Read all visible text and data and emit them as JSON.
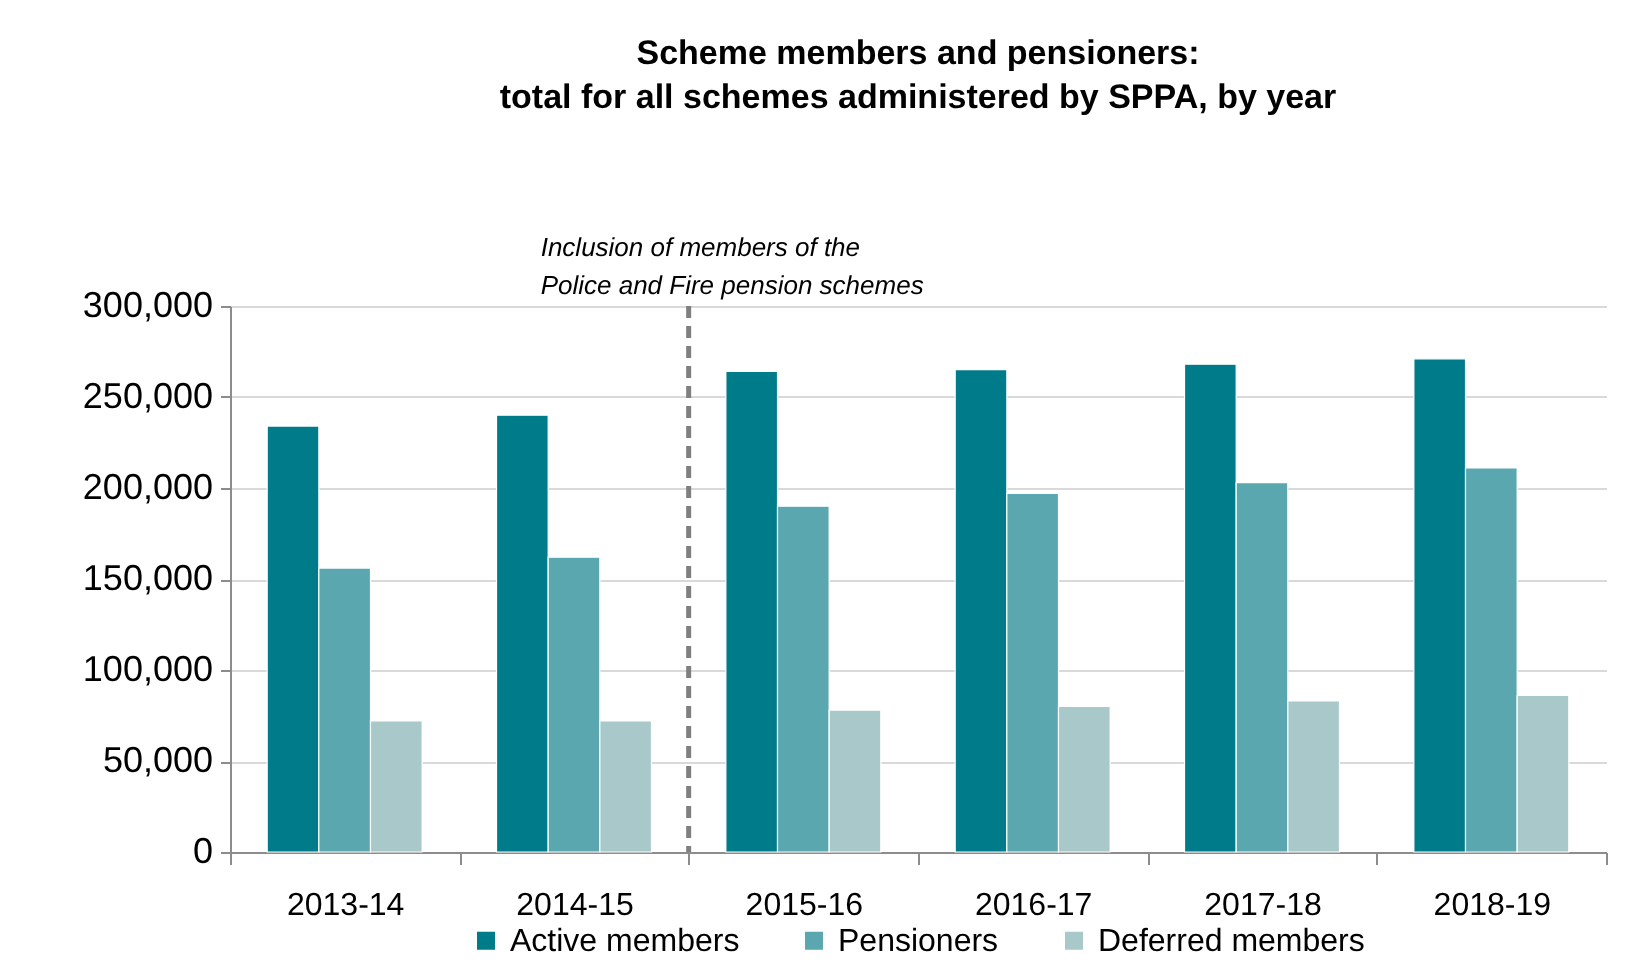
{
  "chart_data": {
    "type": "bar",
    "title": "Scheme members and pensioners:\ntotal for all schemes administered by SPPA, by year",
    "categories": [
      "2013-14",
      "2014-15",
      "2015-16",
      "2016-17",
      "2017-18",
      "2018-19"
    ],
    "series": [
      {
        "name": "Active members",
        "color": "#007b8a",
        "values": [
          234000,
          240000,
          264000,
          265000,
          268000,
          271000
        ]
      },
      {
        "name": "Pensioners",
        "color": "#5aa7b0",
        "values": [
          156000,
          162000,
          190000,
          197000,
          203000,
          211000
        ]
      },
      {
        "name": "Deferred members",
        "color": "#a8c8ca",
        "values": [
          72000,
          72000,
          78000,
          80000,
          83000,
          86000
        ]
      }
    ],
    "ylim": [
      0,
      300000
    ],
    "yticks": [
      0,
      {
        "value": 50000,
        "label": "50,000"
      },
      {
        "value": 100000,
        "label": "100,000"
      },
      {
        "value": 150000,
        "label": "150,000"
      },
      {
        "value": 200000,
        "label": "200,000"
      },
      {
        "value": 250000,
        "label": "250,000"
      },
      {
        "value": 300000,
        "label": "300,000"
      }
    ],
    "grid": "y",
    "legend": "bottom",
    "ref_lines": [
      {
        "axis": "x",
        "value": "2015-16",
        "label": "Inclusion of members of the\nPolice and Fire pension schemes",
        "color": "#7f7f7f",
        "line_style": "dashed"
      }
    ]
  }
}
